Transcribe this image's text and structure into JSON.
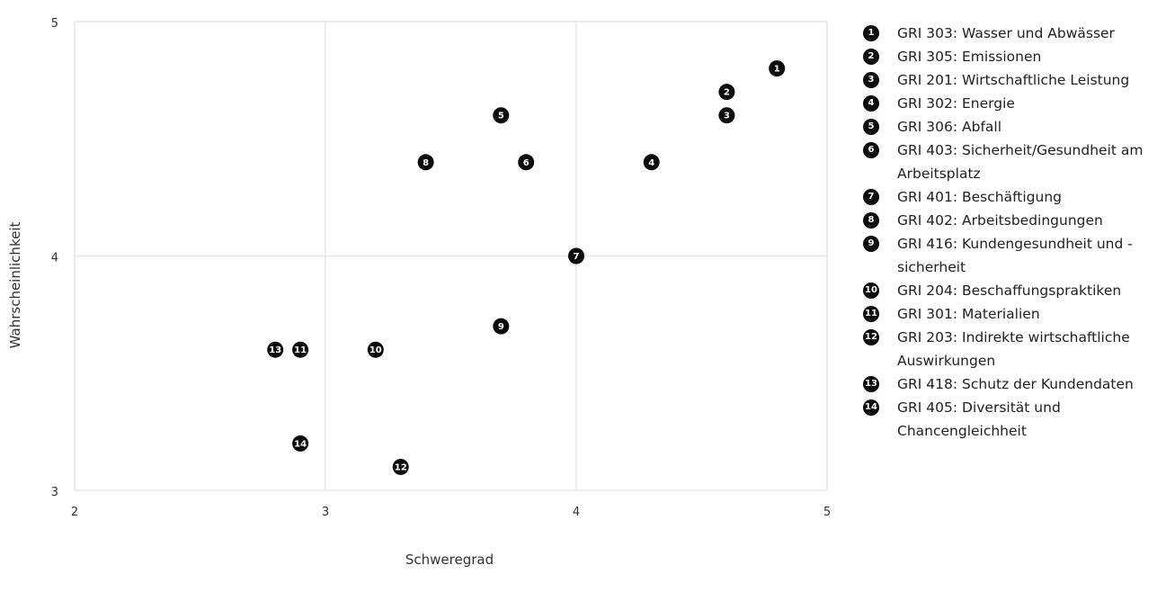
{
  "chart_data": {
    "type": "scatter",
    "xlabel": "Schweregrad",
    "ylabel": "Wahrscheinlichkeit",
    "xlim": [
      2,
      5
    ],
    "ylim": [
      3,
      5
    ],
    "xticks": [
      "2",
      "3",
      "4",
      "5"
    ],
    "yticks": [
      "3",
      "4",
      "5"
    ],
    "grid": true,
    "legend_position": "right",
    "marker_color": "#0b0b0b",
    "grid_color": "#e6e6e6",
    "points": [
      {
        "id": "1",
        "x": 4.8,
        "y": 4.8,
        "label": "GRI 303: Wasser und Abwässer"
      },
      {
        "id": "2",
        "x": 4.6,
        "y": 4.7,
        "label": "GRI 305: Emissionen"
      },
      {
        "id": "3",
        "x": 4.6,
        "y": 4.6,
        "label": "GRI 201: Wirtschaftliche Leistung"
      },
      {
        "id": "4",
        "x": 4.3,
        "y": 4.4,
        "label": "GRI 302: Energie"
      },
      {
        "id": "5",
        "x": 3.7,
        "y": 4.6,
        "label": "GRI 306: Abfall"
      },
      {
        "id": "6",
        "x": 3.8,
        "y": 4.4,
        "label": "GRI 403: Sicherheit/Gesund­heit am Arbeitsplatz"
      },
      {
        "id": "7",
        "x": 4.0,
        "y": 4.0,
        "label": "GRI 401: Beschäftigung"
      },
      {
        "id": "8",
        "x": 3.4,
        "y": 4.4,
        "label": "GRI 402: Arbeitsbedingungen"
      },
      {
        "id": "9",
        "x": 3.7,
        "y": 3.7,
        "label": "GRI 416: Kundengesundheit und -sicherheit"
      },
      {
        "id": "10",
        "x": 3.2,
        "y": 3.6,
        "label": "GRI 204: Beschaffungspraktiken"
      },
      {
        "id": "11",
        "x": 2.9,
        "y": 3.6,
        "label": "GRI 301: Materialien"
      },
      {
        "id": "12",
        "x": 3.3,
        "y": 3.1,
        "label": "GRI 203: Indirekte wirtschaft­liche Auswirkungen"
      },
      {
        "id": "13",
        "x": 2.8,
        "y": 3.6,
        "label": "GRI 418: Schutz der Kundendaten"
      },
      {
        "id": "14",
        "x": 2.9,
        "y": 3.2,
        "label": "GRI 405: Diversität und Chancengleichheit"
      }
    ]
  }
}
